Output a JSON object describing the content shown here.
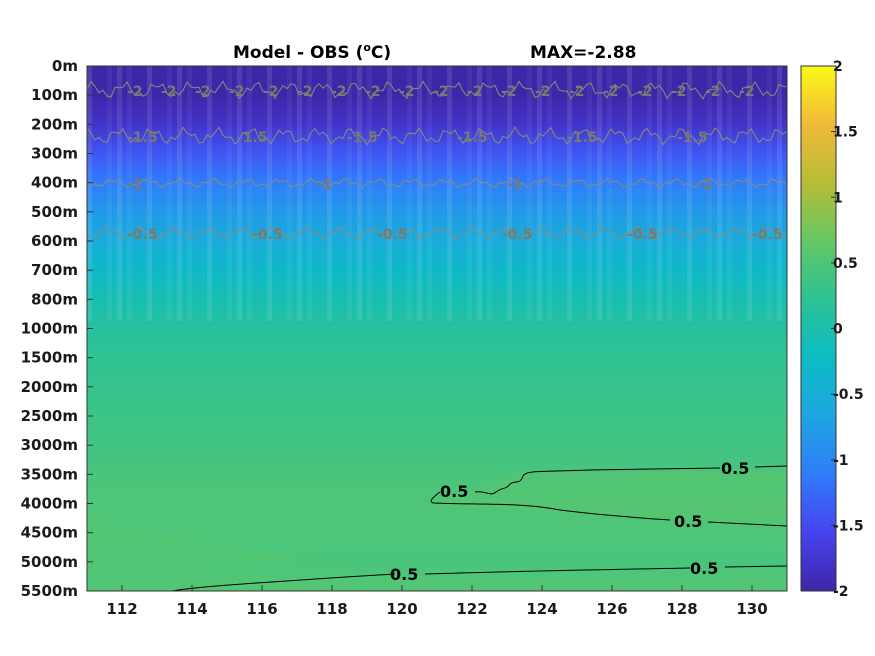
{
  "chart_data": {
    "type": "heatmap",
    "title": "Model - OBS (",
    "title_superscript": "o",
    "title_unit": "C)",
    "max_label": "MAX=-2.88",
    "xlabel": "",
    "ylabel": "",
    "x_ticks": [
      "112",
      "114",
      "116",
      "118",
      "120",
      "122",
      "124",
      "126",
      "128",
      "130"
    ],
    "xlim": [
      111,
      131
    ],
    "y_ticks": [
      "0m",
      "100m",
      "200m",
      "300m",
      "400m",
      "500m",
      "600m",
      "700m",
      "800m",
      "1000m",
      "1500m",
      "2000m",
      "2500m",
      "3000m",
      "3500m",
      "4000m",
      "4500m",
      "5000m",
      "5500m"
    ],
    "colorbar": {
      "range": [
        -2,
        2
      ],
      "ticks": [
        "-2",
        "-1.5",
        "-1",
        "-0.5",
        "0",
        "0.5",
        "1",
        "1.5",
        "2"
      ],
      "colormap": [
        "#3e26a8",
        "#4743f0",
        "#2f7cfa",
        "#1da6e2",
        "#0cbcc4",
        "#2cc295",
        "#64c865",
        "#b7bd36",
        "#f2b93a",
        "#fafa14"
      ]
    },
    "depth_profile": [
      {
        "depth": "0m",
        "value": -2.3
      },
      {
        "depth": "100m",
        "value": -2.1
      },
      {
        "depth": "200m",
        "value": -1.8
      },
      {
        "depth": "300m",
        "value": -1.4
      },
      {
        "depth": "400m",
        "value": -1.1
      },
      {
        "depth": "500m",
        "value": -0.8
      },
      {
        "depth": "600m",
        "value": -0.55
      },
      {
        "depth": "700m",
        "value": -0.3
      },
      {
        "depth": "800m",
        "value": -0.05
      },
      {
        "depth": "1000m",
        "value": 0.15
      },
      {
        "depth": "1500m",
        "value": 0.25
      },
      {
        "depth": "2000m",
        "value": 0.3
      },
      {
        "depth": "2500m",
        "value": 0.35
      },
      {
        "depth": "3000m",
        "value": 0.4
      },
      {
        "depth": "3500m",
        "value": 0.45
      },
      {
        "depth": "4000m",
        "value": 0.5
      },
      {
        "depth": "4500m",
        "value": 0.5
      },
      {
        "depth": "5000m",
        "value": 0.45
      },
      {
        "depth": "5500m",
        "value": 0.55
      }
    ],
    "contours_upper": [
      {
        "value": -2,
        "label": "-2"
      },
      {
        "value": -1.5,
        "label": "-1.5"
      },
      {
        "value": -1,
        "label": "-1"
      },
      {
        "value": -0.5,
        "label": "-0.5"
      }
    ],
    "contour_labels_lower": [
      "0.5",
      "0.5",
      "0.5",
      "0.5",
      "0.5"
    ],
    "grid": false,
    "legend": "colorbar-right"
  }
}
